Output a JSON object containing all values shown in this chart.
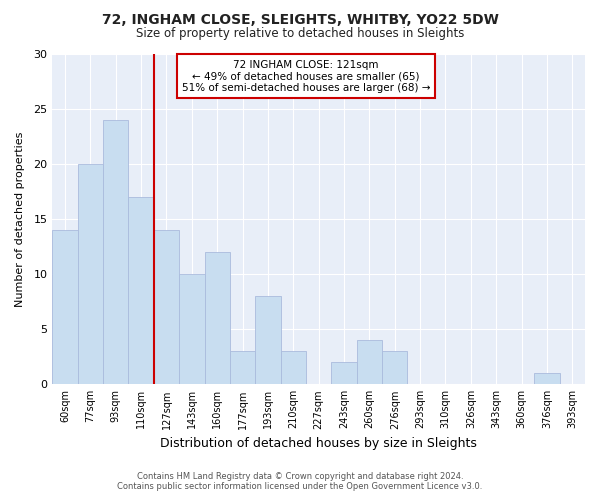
{
  "title": "72, INGHAM CLOSE, SLEIGHTS, WHITBY, YO22 5DW",
  "subtitle": "Size of property relative to detached houses in Sleights",
  "xlabel": "Distribution of detached houses by size in Sleights",
  "ylabel": "Number of detached properties",
  "bar_color": "#c8ddf0",
  "bar_edge_color": "#aabbdd",
  "bin_labels": [
    "60sqm",
    "77sqm",
    "93sqm",
    "110sqm",
    "127sqm",
    "143sqm",
    "160sqm",
    "177sqm",
    "193sqm",
    "210sqm",
    "227sqm",
    "243sqm",
    "260sqm",
    "276sqm",
    "293sqm",
    "310sqm",
    "326sqm",
    "343sqm",
    "360sqm",
    "376sqm",
    "393sqm"
  ],
  "values": [
    14,
    20,
    24,
    17,
    14,
    10,
    12,
    3,
    8,
    3,
    0,
    2,
    4,
    3,
    0,
    0,
    0,
    0,
    0,
    1,
    0
  ],
  "ylim": [
    0,
    30
  ],
  "yticks": [
    0,
    5,
    10,
    15,
    20,
    25,
    30
  ],
  "red_line_index": 4,
  "marker_label_line1": "72 INGHAM CLOSE: 121sqm",
  "marker_label_line2": "← 49% of detached houses are smaller (65)",
  "marker_label_line3": "51% of semi-detached houses are larger (68) →",
  "annotation_box_color": "#ffffff",
  "annotation_box_edge_color": "#cc0000",
  "red_line_color": "#cc0000",
  "footer_line1": "Contains HM Land Registry data © Crown copyright and database right 2024.",
  "footer_line2": "Contains public sector information licensed under the Open Government Licence v3.0.",
  "background_color": "#ffffff",
  "plot_bg_color": "#e8eef8",
  "grid_color": "#ffffff"
}
